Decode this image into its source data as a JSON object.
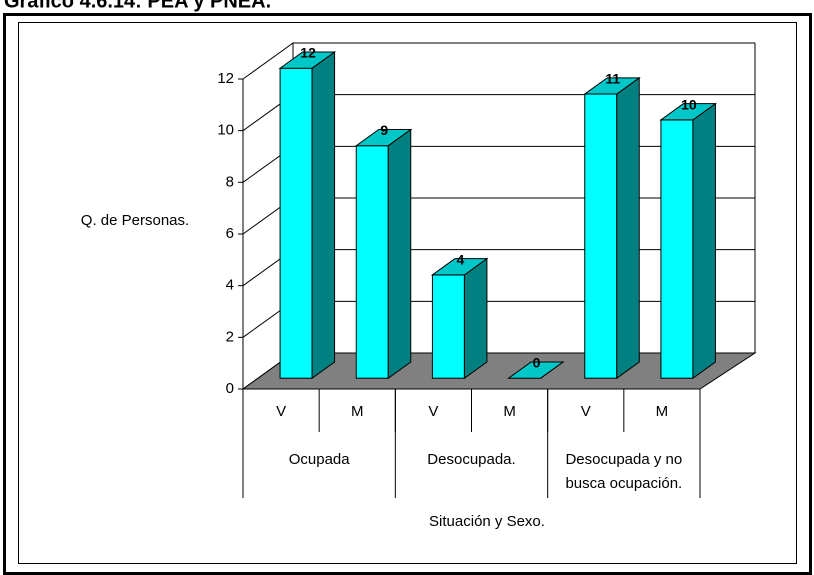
{
  "chart_data": {
    "type": "bar",
    "title": "Gráfico 4.6.14: PEA y PNEA.",
    "ylabel": "Q. de Personas.",
    "xlabel": "Situación y Sexo.",
    "categories": [
      "V",
      "M",
      "V",
      "M",
      "V",
      "M"
    ],
    "groups": [
      {
        "lines": [
          "Ocupada"
        ]
      },
      {
        "lines": [
          "Desocupada."
        ]
      },
      {
        "lines": [
          "Desocupada y no",
          "busca ocupación."
        ]
      }
    ],
    "values": [
      12,
      9,
      4,
      0,
      11,
      10
    ],
    "color": "#00ffff",
    "side_color": "#008080",
    "top_color": "#00c8c8",
    "floor_color": "#808080",
    "ylim": [
      0,
      12
    ],
    "yticks": [
      0,
      2,
      4,
      6,
      8,
      10,
      12
    ],
    "grid": true
  }
}
